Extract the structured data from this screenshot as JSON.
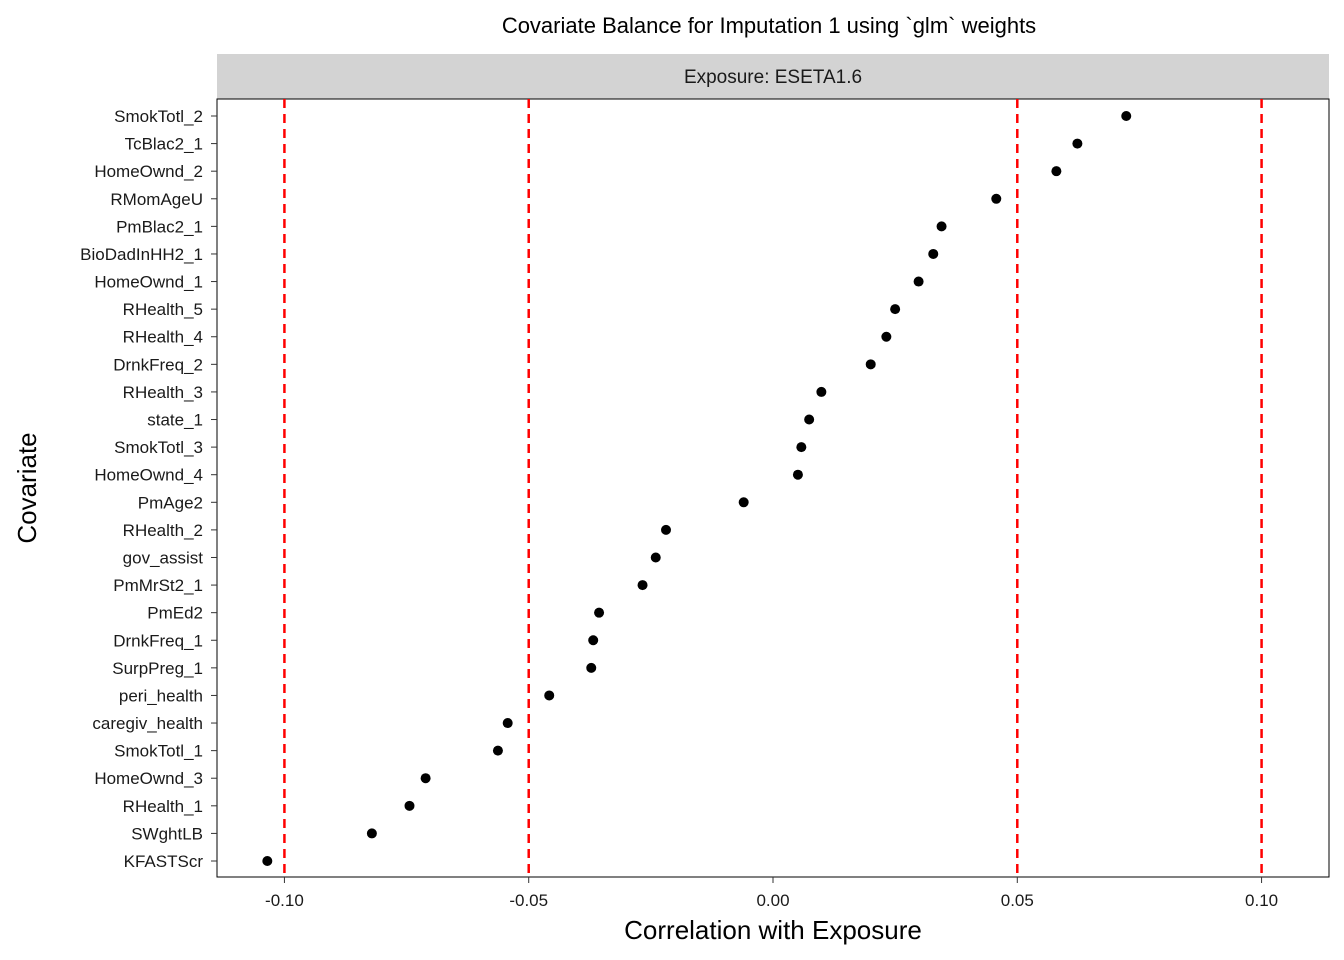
{
  "chart_data": {
    "type": "scatter",
    "title": "Covariate Balance for Imputation 1 using `glm` weights",
    "facet_label": "Exposure: ESETA1.6",
    "xlabel": "Correlation with Exposure",
    "ylabel": "Covariate",
    "xlim": [
      -0.1138,
      0.1138
    ],
    "x_ticks": [
      -0.1,
      -0.05,
      0.0,
      0.05,
      0.1
    ],
    "x_tick_labels": [
      "-0.10",
      "-0.05",
      "0.00",
      "0.05",
      "0.10"
    ],
    "reference_lines": [
      -0.1,
      -0.05,
      0.05,
      0.1
    ],
    "reference_line_color": "#ff0000",
    "point_color": "#000000",
    "grid": false,
    "points": [
      {
        "label": "SmokTotl_2",
        "x": 0.0723
      },
      {
        "label": "TcBlac2_1",
        "x": 0.0623
      },
      {
        "label": "HomeOwnd_2",
        "x": 0.058
      },
      {
        "label": "RMomAgeU",
        "x": 0.0457
      },
      {
        "label": "PmBlac2_1",
        "x": 0.0345
      },
      {
        "label": "BioDadInHH2_1",
        "x": 0.0328
      },
      {
        "label": "HomeOwnd_1",
        "x": 0.0298
      },
      {
        "label": "RHealth_5",
        "x": 0.025
      },
      {
        "label": "RHealth_4",
        "x": 0.0232
      },
      {
        "label": "DrnkFreq_2",
        "x": 0.02
      },
      {
        "label": "RHealth_3",
        "x": 0.0099
      },
      {
        "label": "state_1",
        "x": 0.0074
      },
      {
        "label": "SmokTotl_3",
        "x": 0.0058
      },
      {
        "label": "HomeOwnd_4",
        "x": 0.0051
      },
      {
        "label": "PmAge2",
        "x": -0.006
      },
      {
        "label": "RHealth_2",
        "x": -0.0219
      },
      {
        "label": "gov_assist",
        "x": -0.024
      },
      {
        "label": "PmMrSt2_1",
        "x": -0.0267
      },
      {
        "label": "PmEd2",
        "x": -0.0356
      },
      {
        "label": "DrnkFreq_1",
        "x": -0.0368
      },
      {
        "label": "SurpPreg_1",
        "x": -0.0372
      },
      {
        "label": "peri_health",
        "x": -0.0458
      },
      {
        "label": "caregiv_health",
        "x": -0.0543
      },
      {
        "label": "SmokTotl_1",
        "x": -0.0563
      },
      {
        "label": "HomeOwnd_3",
        "x": -0.0711
      },
      {
        "label": "RHealth_1",
        "x": -0.0744
      },
      {
        "label": "SWghtLB",
        "x": -0.0821
      },
      {
        "label": "KFASTScr",
        "x": -0.1035
      }
    ]
  }
}
